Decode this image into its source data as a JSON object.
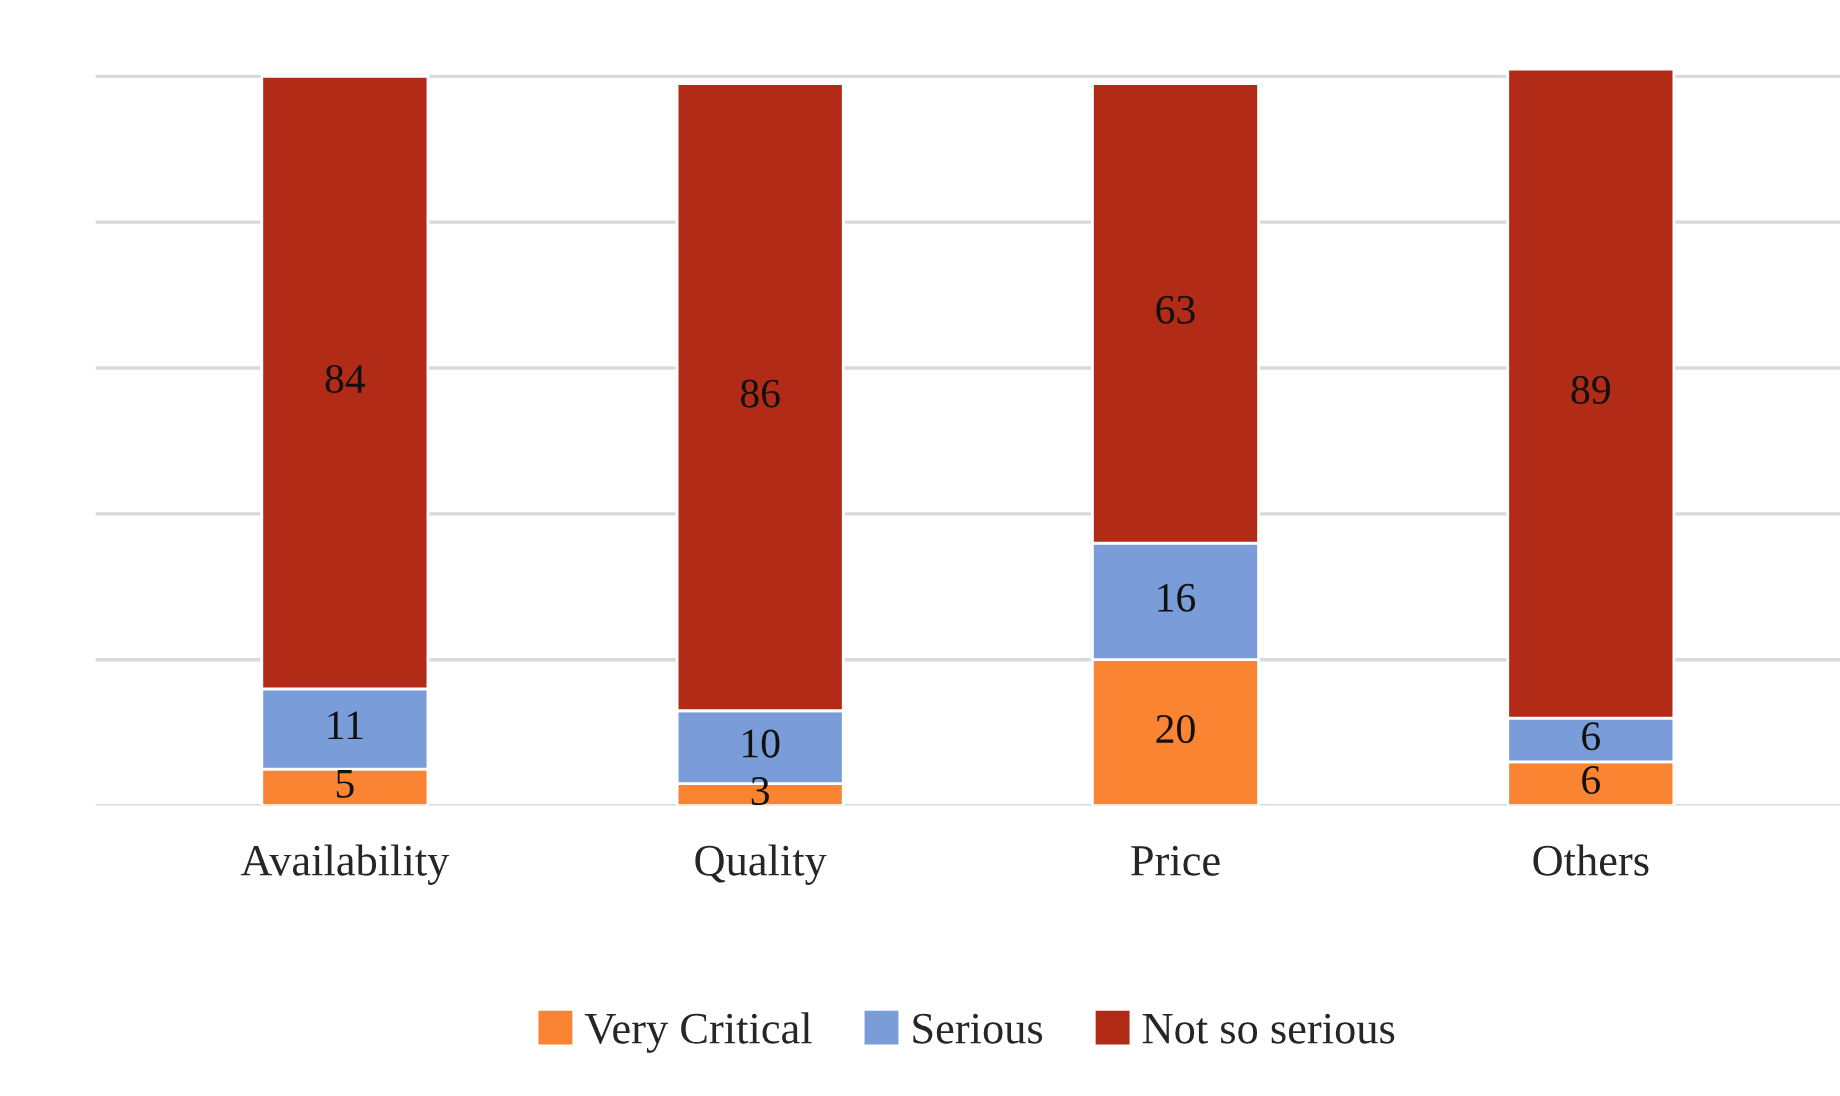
{
  "chart_data": {
    "type": "bar",
    "stacked": true,
    "categories": [
      "Availability",
      "Quality",
      "Price",
      "Others"
    ],
    "series": [
      {
        "name": "Very Critical",
        "color": "#fa8431",
        "values": [
          5,
          3,
          20,
          6
        ]
      },
      {
        "name": "Serious",
        "color": "#7a9cd9",
        "values": [
          11,
          10,
          16,
          6
        ]
      },
      {
        "name": "Not so serious",
        "color": "#b12b17",
        "values": [
          84,
          86,
          63,
          89
        ]
      }
    ],
    "ylim": [
      0,
      101
    ],
    "yticks": [
      {
        "value": 0,
        "label": null
      },
      {
        "value": 20,
        "label": null
      },
      {
        "value": 40,
        "label": null
      },
      {
        "value": 60,
        "label": null
      },
      {
        "value": 80,
        "label": null
      },
      {
        "value": 100,
        "label": null
      }
    ],
    "grid": "y",
    "legend": "bottom",
    "data_labels": true,
    "tick_labels": "x"
  }
}
